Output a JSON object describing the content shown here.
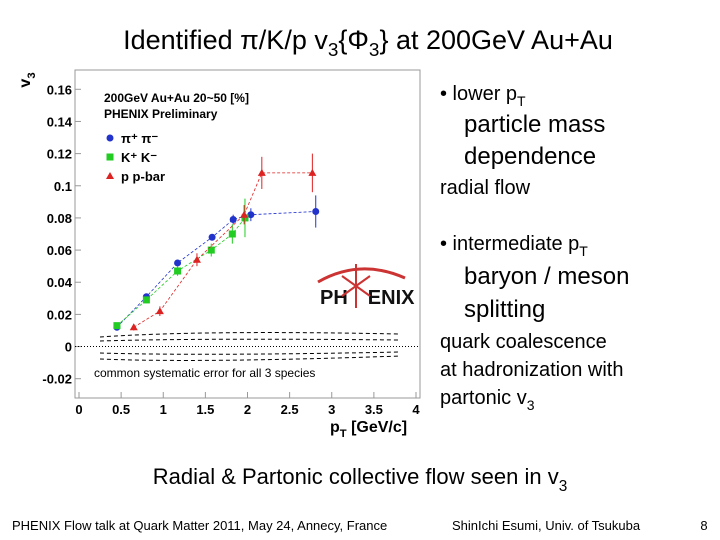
{
  "title": [
    "Identified π/K/p v",
    "3",
    "{Φ",
    "3",
    "} at 200GeV Au+Au"
  ],
  "bullets": {
    "lower": [
      "• lower p",
      "T"
    ],
    "mass": [
      "particle mass",
      "dependence"
    ],
    "radial": "radial flow",
    "intermediate": [
      "• intermediate p",
      "T"
    ],
    "baryon": [
      "baryon / meson",
      "splitting"
    ],
    "quark": [
      "quark coalescence",
      "at hadronization with"
    ],
    "partonic": [
      "partonic v",
      "3"
    ]
  },
  "conclusion": [
    "Radial & Partonic collective flow seen in v",
    "3"
  ],
  "footer": {
    "talk": "PHENIX Flow talk at Quark Matter 2011, May 24, Annecy, France",
    "author": "ShinIchi Esumi, Univ. of Tsukuba",
    "page": "8"
  },
  "chart_data": {
    "type": "scatter",
    "ylabel": [
      "v",
      "3"
    ],
    "xlabel": [
      "p",
      "T",
      " [GeV/c]"
    ],
    "legend_title": [
      "200GeV Au+Au 20~50 [%]",
      "PHENIX Preliminary"
    ],
    "annotation": "common systematic error for all 3 species",
    "logo": [
      "PH",
      "ENIX"
    ],
    "xlim": [
      0,
      4
    ],
    "xticks": [
      0,
      0.5,
      1,
      1.5,
      2,
      2.5,
      3,
      3.5,
      4
    ],
    "ylim": [
      -0.032,
      0.172
    ],
    "yticks": [
      -0.02,
      0,
      0.02,
      0.04,
      0.06,
      0.08,
      0.1,
      0.12,
      0.14,
      0.16
    ],
    "series": [
      {
        "name": "π⁺ π⁻",
        "color": "#2233cc",
        "marker": "circle",
        "x": [
          0.45,
          0.8,
          1.17,
          1.58,
          1.83,
          2.04,
          2.81
        ],
        "values": [
          0.012,
          0.031,
          0.052,
          0.068,
          0.079,
          0.082,
          0.084
        ],
        "errors": [
          0.001,
          0.001,
          0.002,
          0.002,
          0.003,
          0.004,
          0.01
        ]
      },
      {
        "name": "K⁺ K⁻",
        "color": "#22cc22",
        "marker": "square",
        "x": [
          0.45,
          0.8,
          1.17,
          1.57,
          1.82,
          1.97
        ],
        "values": [
          0.013,
          0.029,
          0.047,
          0.06,
          0.07,
          0.08
        ],
        "errors": [
          0.001,
          0.002,
          0.003,
          0.004,
          0.006,
          0.012
        ]
      },
      {
        "name": "p p-bar",
        "color": "#dd2222",
        "marker": "triangle",
        "x": [
          0.65,
          0.96,
          1.4,
          1.96,
          2.17,
          2.77
        ],
        "values": [
          0.012,
          0.022,
          0.054,
          0.082,
          0.108,
          0.108
        ],
        "errors": [
          0.002,
          0.003,
          0.004,
          0.006,
          0.01,
          0.012
        ]
      }
    ]
  }
}
